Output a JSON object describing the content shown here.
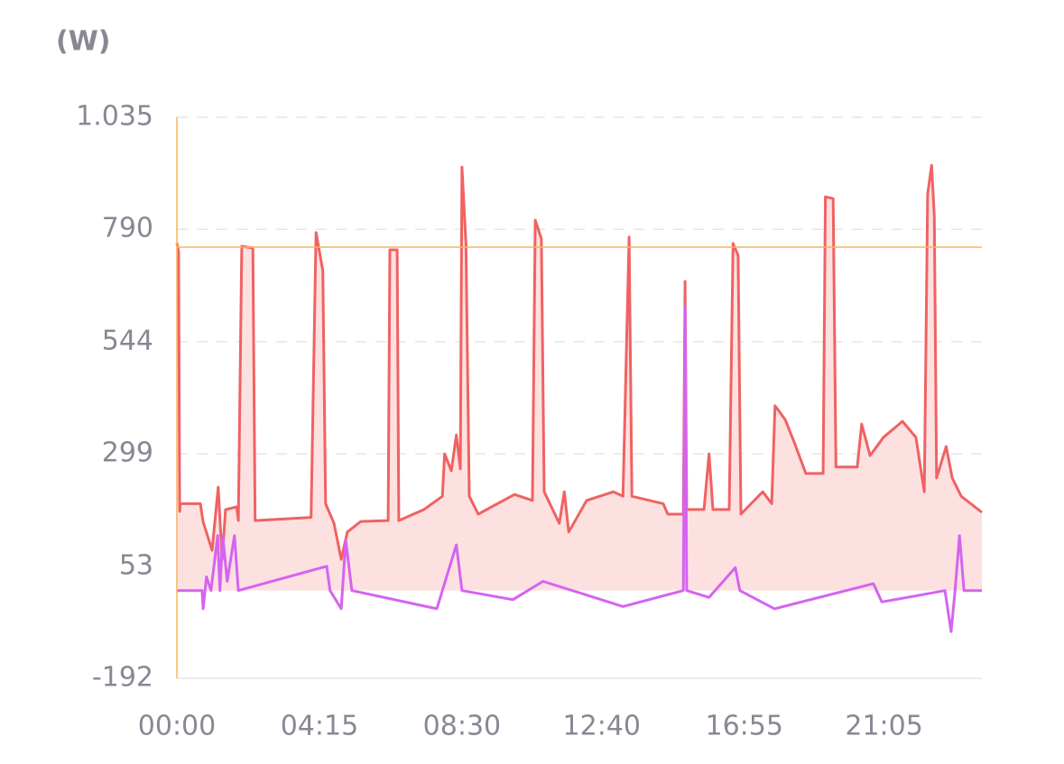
{
  "chart_data": {
    "type": "line",
    "ylabel": "(W)",
    "xlim": [
      0,
      1440
    ],
    "xticks": [
      {
        "value": 0,
        "label": "00:00"
      },
      {
        "value": 255,
        "label": "04:15"
      },
      {
        "value": 510,
        "label": "08:30"
      },
      {
        "value": 760,
        "label": "12:40"
      },
      {
        "value": 1015,
        "label": "16:55"
      },
      {
        "value": 1265,
        "label": "21:05"
      }
    ],
    "ylim": [
      -192,
      1035
    ],
    "yticks": [
      {
        "value": 1035,
        "label": "1.035"
      },
      790,
      544,
      299,
      53,
      -192
    ],
    "grid": true,
    "crosshair": {
      "x": 0,
      "y": 751,
      "color": "#f7b55c"
    },
    "series": [
      {
        "color": "#f06262",
        "fill": "#fde1e1",
        "x": [
          0,
          3,
          5,
          6,
          42,
          47,
          63,
          74,
          81,
          87,
          107,
          110,
          116,
          136,
          140,
          240,
          249,
          261,
          266,
          281,
          294,
          305,
          329,
          378,
          381,
          394,
          397,
          442,
          475,
          479,
          491,
          500,
          507,
          510,
          517,
          523,
          539,
          604,
          636,
          641,
          652,
          657,
          684,
          693,
          701,
          733,
          781,
          798,
          809,
          814,
          870,
          878,
          906,
          909,
          912,
          943,
          952,
          959,
          988,
          995,
          1004,
          1009,
          1048,
          1064,
          1070,
          1088,
          1104,
          1125,
          1156,
          1160,
          1174,
          1179,
          1217,
          1225,
          1240,
          1264,
          1298,
          1322,
          1337,
          1343,
          1350,
          1355,
          1359,
          1376,
          1387,
          1403,
          1440
        ],
        "values": [
          760,
          740,
          173,
          190,
          190,
          150,
          88,
          226,
          68,
          177,
          183,
          153,
          753,
          749,
          153,
          160,
          783,
          700,
          190,
          147,
          68,
          128,
          151,
          153,
          745,
          745,
          153,
          177,
          206,
          299,
          262,
          340,
          266,
          926,
          759,
          206,
          167,
          210,
          197,
          810,
          769,
          216,
          147,
          216,
          128,
          197,
          216,
          206,
          773,
          206,
          190,
          167,
          167,
          676,
          177,
          177,
          299,
          177,
          177,
          759,
          733,
          167,
          216,
          190,
          404,
          374,
          325,
          256,
          256,
          861,
          857,
          270,
          270,
          364,
          295,
          335,
          370,
          335,
          216,
          867,
          930,
          818,
          246,
          315,
          246,
          206,
          171
        ]
      },
      {
        "color": "#d563f0",
        "x": [
          0,
          45,
          47,
          53,
          61,
          73,
          77,
          82,
          90,
          103,
          110,
          268,
          274,
          294,
          302,
          313,
          465,
          500,
          510,
          601,
          655,
          798,
          906,
          909,
          912,
          952,
          999,
          1007,
          1069,
          1246,
          1261,
          1330,
          1374,
          1385,
          1392,
          1400,
          1408,
          1440
        ],
        "values": [
          0,
          0,
          -40,
          30,
          0,
          120,
          0,
          120,
          20,
          120,
          0,
          53,
          0,
          -40,
          110,
          0,
          -40,
          100,
          0,
          -20,
          20,
          -35,
          0,
          620,
          0,
          -15,
          50,
          0,
          -40,
          15,
          -25,
          -10,
          0,
          -90,
          0,
          120,
          0,
          0
        ]
      }
    ]
  }
}
